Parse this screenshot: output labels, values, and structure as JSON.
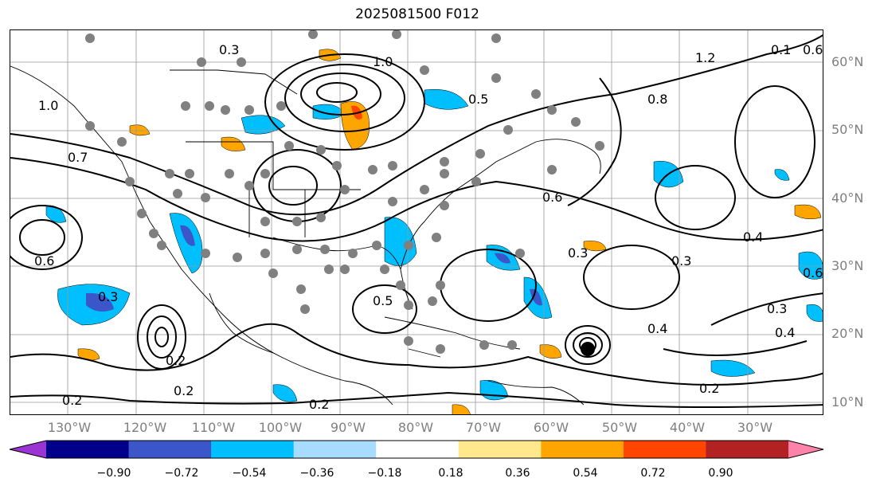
{
  "title": "2025081500 F012",
  "lat_labels": [
    "60°N",
    "50°N",
    "40°N",
    "30°N",
    "20°N",
    "10°N"
  ],
  "lon_labels": [
    "130°W",
    "120°W",
    "110°W",
    "100°W",
    "90°W",
    "80°W",
    "70°W",
    "60°W",
    "50°W",
    "40°W",
    "30°W"
  ],
  "colorbar": {
    "ticks": [
      "−0.90",
      "−0.72",
      "−0.54",
      "−0.36",
      "−0.18",
      "0.18",
      "0.36",
      "0.54",
      "0.72",
      "0.90"
    ],
    "colors": [
      "#9a35d4",
      "#00008b",
      "#3a56c9",
      "#00bfff",
      "#a8dcff",
      "#ffffff",
      "#ffe98c",
      "#ffa500",
      "#ff4500",
      "#b22222",
      "#ff82ab"
    ]
  },
  "contour_labels": [
    "0.3",
    "0.7",
    "1.0",
    "0.5",
    "0.8",
    "1.2",
    "0.1",
    "0.6",
    "0.4",
    "0.2",
    "0.3",
    "0.6",
    "0.3",
    "0.2",
    "0.2",
    "0.2",
    "0.6",
    "0.3",
    "0.4",
    "0.3",
    "0.4",
    "0.6",
    "0.2",
    "1.0",
    "0.5"
  ],
  "legend": {
    "marker": "hurricane-symbol"
  }
}
